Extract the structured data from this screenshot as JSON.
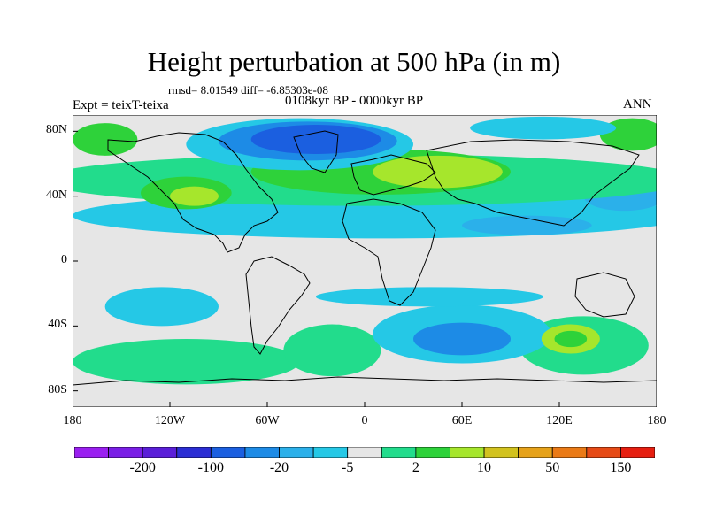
{
  "figure": {
    "title": "Height perturbation at 500 hPa (in m)",
    "stats": "rmsd= 8.01549 diff= -6.85303e-08",
    "period": "0108kyr BP - 0000kyr BP",
    "experiment": "Expt = teixT-teixa",
    "season": "ANN"
  },
  "map_data": {
    "type": "contour-fill map",
    "projection": "cylindrical equidistant",
    "lon_range": [
      -180,
      180
    ],
    "lat_range": [
      -90,
      90
    ],
    "lat_ticks": [
      {
        "value": 80,
        "label": "80N"
      },
      {
        "value": 40,
        "label": "40N"
      },
      {
        "value": 0,
        "label": "0"
      },
      {
        "value": -40,
        "label": "40S"
      },
      {
        "value": -80,
        "label": "80S"
      }
    ],
    "lon_ticks": [
      {
        "value": -180,
        "label": "180"
      },
      {
        "value": -120,
        "label": "120W"
      },
      {
        "value": -60,
        "label": "60W"
      },
      {
        "value": 0,
        "label": "0"
      },
      {
        "value": 60,
        "label": "60E"
      },
      {
        "value": 120,
        "label": "120E"
      },
      {
        "value": 180,
        "label": "180"
      }
    ],
    "colorbar": {
      "colors": [
        "#9a1ff0",
        "#7a1ee6",
        "#5a1ed8",
        "#2b2ed4",
        "#1b5fe0",
        "#1d8be6",
        "#2bb0ea",
        "#25c8e6",
        "#e6e6e6",
        "#22dc8c",
        "#2ed23a",
        "#a6e62c",
        "#d2c21e",
        "#e6a21a",
        "#ea7a16",
        "#e64a16",
        "#e61e10"
      ],
      "labels": [
        {
          "after_box": 1,
          "text": "-200"
        },
        {
          "after_box": 3,
          "text": "-100"
        },
        {
          "after_box": 5,
          "text": "-20"
        },
        {
          "after_box": 7,
          "text": "-5"
        },
        {
          "after_box": 9,
          "text": "2"
        },
        {
          "after_box": 11,
          "text": "10"
        },
        {
          "after_box": 13,
          "text": "50"
        },
        {
          "after_box": 15,
          "text": "150"
        }
      ]
    },
    "regions": [
      {
        "name": "s-ocean-green-w",
        "lon": -110,
        "lat": -62,
        "rx": 70,
        "ry": 14,
        "level": 9
      },
      {
        "name": "s-ocean-green-c",
        "lon": -20,
        "lat": -55,
        "rx": 30,
        "ry": 16,
        "level": 9
      },
      {
        "name": "s-ocean-green-e",
        "lon": 135,
        "lat": -52,
        "rx": 40,
        "ry": 18,
        "level": 9
      },
      {
        "name": "s-ocean-cyan-w",
        "lon": -125,
        "lat": -28,
        "rx": 35,
        "ry": 12,
        "level": 7
      },
      {
        "name": "s-ocean-cyan-indian",
        "lon": 60,
        "lat": -45,
        "rx": 55,
        "ry": 18,
        "level": 7
      },
      {
        "name": "s-ocean-blue-indian",
        "lon": 60,
        "lat": -48,
        "rx": 30,
        "ry": 10,
        "level": 5
      },
      {
        "name": "s-ocean-yellow-aus",
        "lon": 127,
        "lat": -48,
        "rx": 18,
        "ry": 9,
        "level": 11
      },
      {
        "name": "s-ocean-lime-aus",
        "lon": 127,
        "lat": -48,
        "rx": 10,
        "ry": 5,
        "level": 10
      },
      {
        "name": "trop-cyan-s",
        "lon": 40,
        "lat": -22,
        "rx": 70,
        "ry": 6,
        "level": 7
      },
      {
        "name": "n-mid-cyan-band",
        "lon": 10,
        "lat": 28,
        "rx": 190,
        "ry": 14,
        "level": 7
      },
      {
        "name": "n-mid-blue-asia",
        "lon": 100,
        "lat": 22,
        "rx": 40,
        "ry": 6,
        "level": 6
      },
      {
        "name": "n-pac-blue",
        "lon": 160,
        "lat": 40,
        "rx": 25,
        "ry": 9,
        "level": 6
      },
      {
        "name": "n-green-band",
        "lon": 0,
        "lat": 50,
        "rx": 200,
        "ry": 16,
        "level": 9
      },
      {
        "name": "n-lime-atl-eur",
        "lon": 10,
        "lat": 55,
        "rx": 80,
        "ry": 14,
        "level": 10
      },
      {
        "name": "n-yellow-eur",
        "lon": 45,
        "lat": 55,
        "rx": 40,
        "ry": 10,
        "level": 11
      },
      {
        "name": "n-lime-namer",
        "lon": -110,
        "lat": 42,
        "rx": 28,
        "ry": 10,
        "level": 10
      },
      {
        "name": "n-yellow-namer",
        "lon": -105,
        "lat": 40,
        "rx": 15,
        "ry": 6,
        "level": 11
      },
      {
        "name": "n-lime-pacnw",
        "lon": -160,
        "lat": 75,
        "rx": 20,
        "ry": 10,
        "level": 10
      },
      {
        "name": "n-lime-eastsib",
        "lon": 165,
        "lat": 78,
        "rx": 20,
        "ry": 10,
        "level": 10
      },
      {
        "name": "arctic-cyan",
        "lon": -40,
        "lat": 72,
        "rx": 70,
        "ry": 16,
        "level": 7
      },
      {
        "name": "arctic-blue",
        "lon": -35,
        "lat": 74,
        "rx": 55,
        "ry": 12,
        "level": 5
      },
      {
        "name": "arctic-dark",
        "lon": -30,
        "lat": 75,
        "rx": 40,
        "ry": 9,
        "level": 4
      },
      {
        "name": "arctic-cyan-e",
        "lon": 110,
        "lat": 82,
        "rx": 45,
        "ry": 7,
        "level": 7
      }
    ]
  }
}
